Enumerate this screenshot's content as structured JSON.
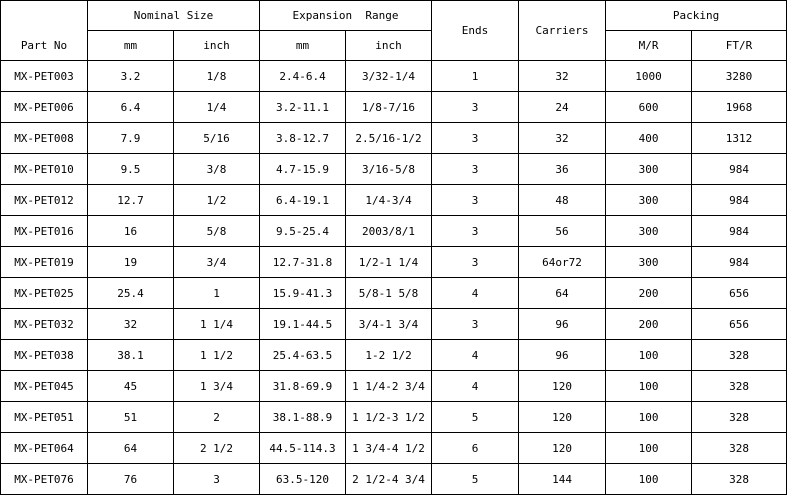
{
  "headers": {
    "part_no": "Part No",
    "nominal_size": "Nominal Size",
    "expansion_range": "Expansion  Range",
    "ends": "Ends",
    "carriers": "Carriers",
    "packing": "Packing",
    "mm": "mm",
    "inch": "inch",
    "exp_mm": "mm",
    "exp_inch": "inch",
    "mr": "M/R",
    "ftr": "FT/R"
  },
  "rows": [
    [
      "MX-PET003",
      "3.2",
      "1/8",
      "2.4-6.4",
      "3/32-1/4",
      "1",
      "32",
      "1000",
      "3280"
    ],
    [
      "MX-PET006",
      "6.4",
      "1/4",
      "3.2-11.1",
      "1/8-7/16",
      "3",
      "24",
      "600",
      "1968"
    ],
    [
      "MX-PET008",
      "7.9",
      "5/16",
      "3.8-12.7",
      "2.5/16-1/2",
      "3",
      "32",
      "400",
      "1312"
    ],
    [
      "MX-PET010",
      "9.5",
      "3/8",
      "4.7-15.9",
      "3/16-5/8",
      "3",
      "36",
      "300",
      "984"
    ],
    [
      "MX-PET012",
      "12.7",
      "1/2",
      "6.4-19.1",
      "1/4-3/4",
      "3",
      "48",
      "300",
      "984"
    ],
    [
      "MX-PET016",
      "16",
      "5/8",
      "9.5-25.4",
      "2003/8/1",
      "3",
      "56",
      "300",
      "984"
    ],
    [
      "MX-PET019",
      "19",
      "3/4",
      "12.7-31.8",
      "1/2-1 1/4",
      "3",
      "64or72",
      "300",
      "984"
    ],
    [
      "MX-PET025",
      "25.4",
      "1",
      "15.9-41.3",
      "5/8-1 5/8",
      "4",
      "64",
      "200",
      "656"
    ],
    [
      "MX-PET032",
      "32",
      "1 1/4",
      "19.1-44.5",
      "3/4-1 3/4",
      "3",
      "96",
      "200",
      "656"
    ],
    [
      "MX-PET038",
      "38.1",
      "1 1/2",
      "25.4-63.5",
      "1-2 1/2",
      "4",
      "96",
      "100",
      "328"
    ],
    [
      "MX-PET045",
      "45",
      "1 3/4",
      "31.8-69.9",
      "1 1/4-2 3/4",
      "4",
      "120",
      "100",
      "328"
    ],
    [
      "MX-PET051",
      "51",
      "2",
      "38.1-88.9",
      "1 1/2-3 1/2",
      "5",
      "120",
      "100",
      "328"
    ],
    [
      "MX-PET064",
      "64",
      "2 1/2",
      "44.5-114.3",
      "1 3/4-4 1/2",
      "6",
      "120",
      "100",
      "328"
    ],
    [
      "MX-PET076",
      "76",
      "3",
      "63.5-120",
      "2 1/2-4 3/4",
      "5",
      "144",
      "100",
      "328"
    ]
  ]
}
